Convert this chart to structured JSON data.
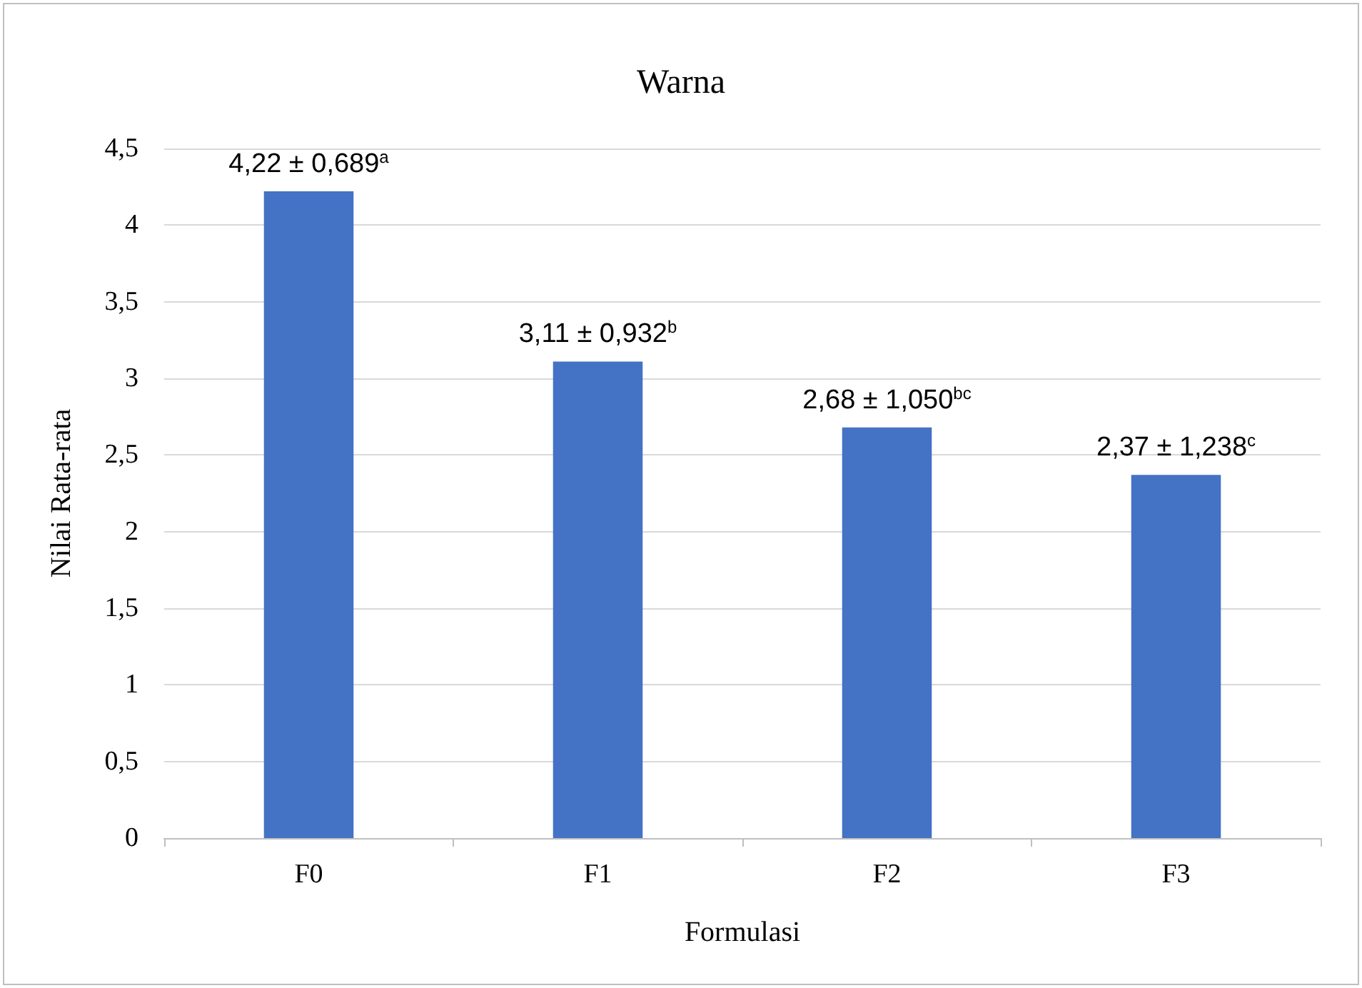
{
  "chart_data": {
    "type": "bar",
    "title": "Warna",
    "xlabel": "Formulasi",
    "ylabel": "Nilai Rata-rata",
    "categories": [
      "F0",
      "F1",
      "F2",
      "F3"
    ],
    "values": [
      4.22,
      3.11,
      2.68,
      2.37
    ],
    "value_labels": [
      "4,22 ± 0,689$^{a}$",
      "3,11 ± 0,932$^{b}$",
      "2,68 ± 1,050$^{bc}$",
      "2,37 ± 1,238$^{c}$"
    ],
    "color": "#4472c4",
    "ylim": [
      0,
      4.5
    ],
    "yticks": [
      0,
      {
        "value": 0.5,
        "label": "0,5"
      },
      1,
      {
        "value": 1.5,
        "label": "1,5"
      },
      2,
      {
        "value": 2.5,
        "label": "2,5"
      },
      3,
      {
        "value": 3.5,
        "label": "3,5"
      },
      4,
      {
        "value": 4.5,
        "label": "4,5"
      }
    ],
    "grid": "y"
  }
}
